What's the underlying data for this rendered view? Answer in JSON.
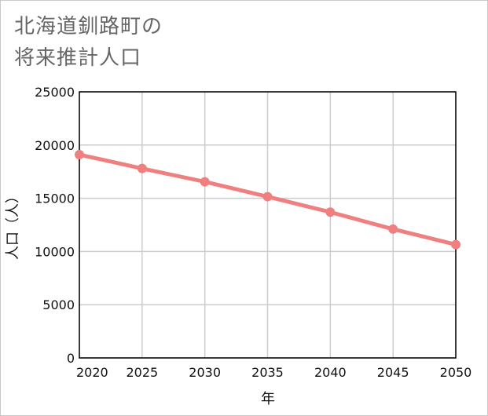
{
  "chart_data": {
    "type": "line",
    "title_lines": [
      "北海道釧路町の",
      "将来推計人口"
    ],
    "xlabel": "年",
    "ylabel": "人口（人）",
    "x": [
      2020,
      2025,
      2030,
      2035,
      2040,
      2045,
      2050
    ],
    "xlim": [
      2020,
      2050
    ],
    "ylim": [
      0,
      25000
    ],
    "yticks": [
      0,
      5000,
      10000,
      15000,
      20000,
      25000
    ],
    "grid": true,
    "series": [
      {
        "name": "人口",
        "color": "#f08080",
        "values": [
          19100,
          17800,
          16550,
          15150,
          13700,
          12100,
          10650
        ]
      }
    ]
  },
  "colors": {
    "title": "#666666",
    "grid": "#cccccc",
    "axis": "#000000",
    "text": "#111111"
  }
}
